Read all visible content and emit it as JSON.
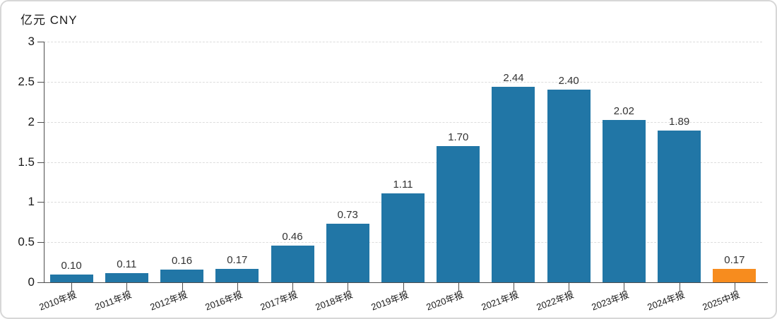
{
  "chart_data": {
    "type": "bar",
    "title": "亿元 CNY",
    "ylabel": "亿元 CNY",
    "xlabel": "",
    "categories": [
      "2010年报",
      "2011年报",
      "2012年报",
      "2016年报",
      "2017年报",
      "2018年报",
      "2019年报",
      "2020年报",
      "2021年报",
      "2022年报",
      "2023年报",
      "2024年报",
      "2025中报"
    ],
    "values": [
      0.1,
      0.11,
      0.16,
      0.17,
      0.46,
      0.73,
      1.11,
      1.7,
      2.44,
      2.4,
      2.02,
      1.89,
      0.17
    ],
    "value_labels": [
      "0.10",
      "0.11",
      "0.16",
      "0.17",
      "0.46",
      "0.73",
      "1.11",
      "1.70",
      "2.44",
      "2.40",
      "2.02",
      "1.89",
      "0.17"
    ],
    "ylim": [
      0,
      3
    ],
    "yticks": [
      0,
      0.5,
      1,
      1.5,
      2,
      2.5,
      3
    ],
    "ytick_labels": [
      "0",
      "0.5",
      "1",
      "1.5",
      "2",
      "2.5",
      "3"
    ],
    "grid": true,
    "legend": "none",
    "bar_color": "#2176A6",
    "highlight_color": "#F78C1E",
    "highlight_index": 12,
    "axis_color": "#4d4d4d",
    "gridline_color": "#dcdcdc"
  }
}
